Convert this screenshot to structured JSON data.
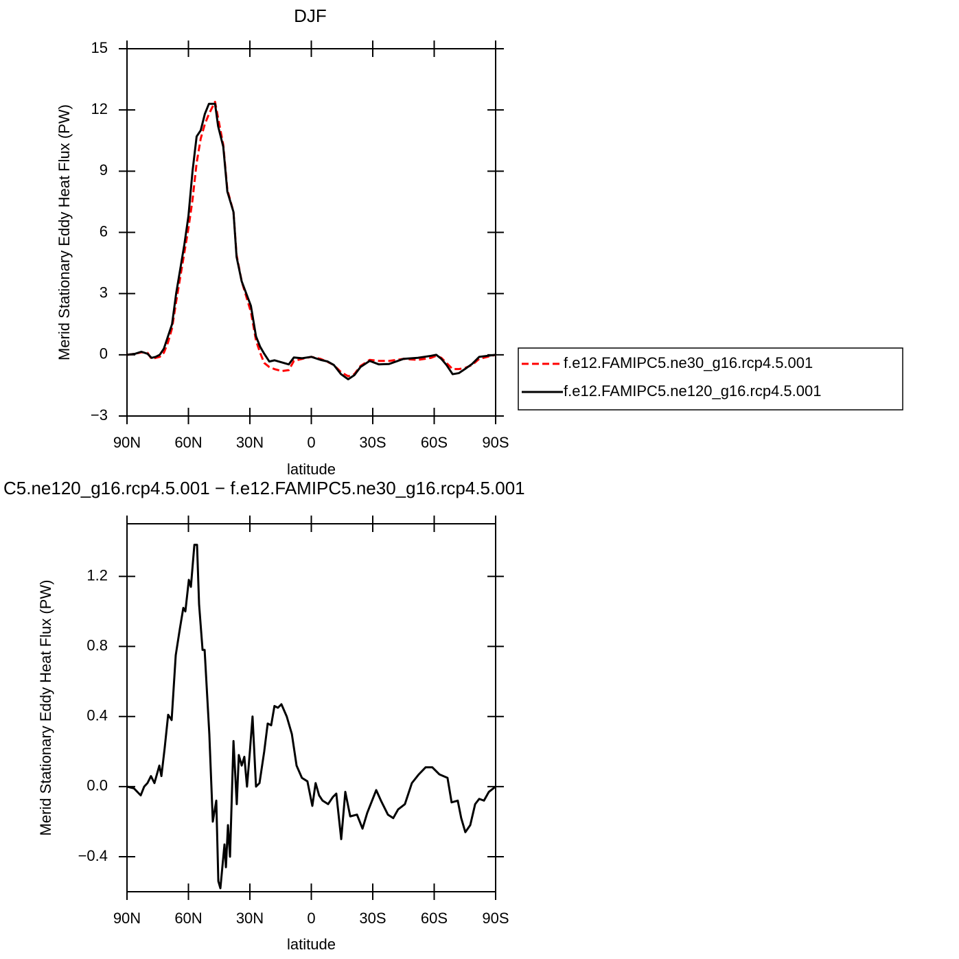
{
  "chart_data": [
    {
      "type": "line",
      "title": "DJF",
      "xlabel": "latitude",
      "ylabel": "Merid Stationary Eddy Heat Flux (PW)",
      "x": [
        90,
        86,
        83,
        80,
        78,
        76,
        74,
        72,
        70,
        68,
        66,
        64,
        62,
        60,
        58,
        56,
        54,
        52,
        50,
        48,
        47,
        45.5,
        43,
        41,
        38,
        36.5,
        34,
        31,
        29.5,
        27,
        25,
        23,
        20.5,
        18,
        14.5,
        11,
        8.5,
        4.5,
        0,
        -4.5,
        -8,
        -11,
        -14.5,
        -18,
        -21,
        -24,
        -28.5,
        -33,
        -38,
        -45,
        -52,
        -58.5,
        -61,
        -63.5,
        -66,
        -69,
        -72,
        -75,
        -78.5,
        -82,
        -90
      ],
      "series": [
        {
          "name": "f.e12.FAMIPC5.ne30_g16.rcp4.5.001",
          "color": "#ff0000",
          "linestyle": "dashed",
          "values": [
            0,
            0.05,
            0.12,
            0.1,
            -0.2,
            -0.15,
            -0.1,
            0.1,
            0.6,
            1.3,
            2.6,
            3.8,
            5.0,
            6.2,
            7.6,
            9.4,
            10.6,
            11.3,
            11.8,
            12.2,
            12.4,
            11.6,
            10.3,
            8.1,
            7.0,
            4.9,
            3.6,
            2.6,
            2.1,
            0.7,
            0.1,
            -0.4,
            -0.6,
            -0.7,
            -0.8,
            -0.75,
            -0.3,
            -0.2,
            -0.1,
            -0.2,
            -0.35,
            -0.5,
            -0.85,
            -1.05,
            -0.95,
            -0.55,
            -0.25,
            -0.3,
            -0.3,
            -0.2,
            -0.25,
            -0.15,
            -0.05,
            -0.15,
            -0.4,
            -0.7,
            -0.7,
            -0.65,
            -0.5,
            -0.2,
            0
          ]
        },
        {
          "name": "f.e12.FAMIPC5.ne120_g16.rcp4.5.001",
          "color": "#000000",
          "linestyle": "solid",
          "values": [
            0,
            0.05,
            0.15,
            0.05,
            -0.15,
            -0.1,
            0.0,
            0.3,
            0.9,
            1.5,
            3.0,
            4.2,
            5.4,
            6.8,
            9.0,
            10.7,
            11.0,
            11.8,
            12.3,
            12.3,
            12.3,
            11.2,
            10.2,
            8.0,
            7.0,
            4.8,
            3.6,
            2.8,
            2.4,
            0.9,
            0.4,
            0.05,
            -0.33,
            -0.27,
            -0.37,
            -0.47,
            -0.13,
            -0.17,
            -0.1,
            -0.25,
            -0.33,
            -0.5,
            -0.95,
            -1.2,
            -1.0,
            -0.6,
            -0.3,
            -0.47,
            -0.45,
            -0.2,
            -0.15,
            -0.05,
            0,
            -0.2,
            -0.5,
            -0.95,
            -0.9,
            -0.7,
            -0.45,
            -0.1,
            0
          ]
        }
      ],
      "xlim": [
        90,
        -90
      ],
      "xticks": [
        {
          "value": 90,
          "label": "90N"
        },
        {
          "value": 60,
          "label": "60N"
        },
        {
          "value": 30,
          "label": "30N"
        },
        0,
        {
          "value": -30,
          "label": "30S"
        },
        {
          "value": -60,
          "label": "60S"
        },
        {
          "value": -90,
          "label": "90S"
        }
      ],
      "ylim": [
        -3,
        15
      ],
      "yticks": [
        {
          "value": -3,
          "label": "−3"
        },
        0,
        3,
        6,
        9,
        12,
        15
      ],
      "legend": "right"
    },
    {
      "type": "line",
      "title": "C5.ne120_g16.rcp4.5.001 − f.e12.FAMIPC5.ne30_g16.rcp4.5.001",
      "xlabel": "latitude",
      "ylabel": "Merid Stationary Eddy Heat Flux (PW)",
      "x": [
        90,
        86.6,
        83.3,
        81.6,
        80,
        78.3,
        76.6,
        74.2,
        73.2,
        71.6,
        69.9,
        68.2,
        66.2,
        64.2,
        62.5,
        61.5,
        59.8,
        58.8,
        57.1,
        55.8,
        54.8,
        53.1,
        52.1,
        49.8,
        48.1,
        46.4,
        45.4,
        44.4,
        42.4,
        41.7,
        40.7,
        39.7,
        38,
        36.4,
        35.4,
        34,
        32.7,
        31.4,
        30,
        28.7,
        27,
        25.3,
        23,
        21.3,
        19.6,
        18,
        16.3,
        14.6,
        12,
        9.5,
        7.2,
        4.6,
        1.9,
        -0.5,
        -2.1,
        -3.8,
        -5.5,
        -8.2,
        -10.5,
        -12.2,
        -14.6,
        -16.6,
        -19,
        -22.3,
        -25,
        -27.3,
        -31.7,
        -34,
        -37.4,
        -40,
        -42.4,
        -45.7,
        -49.1,
        -52.5,
        -55.8,
        -59.1,
        -62.5,
        -66.5,
        -68.5,
        -71.5,
        -73.2,
        -75.2,
        -77.6,
        -80,
        -82,
        -84.3,
        -86.7,
        -90
      ],
      "series": [
        {
          "color": "#000000",
          "linestyle": "solid",
          "values": [
            0,
            -0.01,
            -0.05,
            0.0,
            0.02,
            0.06,
            0.02,
            0.12,
            0.06,
            0.22,
            0.41,
            0.38,
            0.75,
            0.9,
            1.02,
            1.0,
            1.18,
            1.14,
            1.38,
            1.38,
            1.04,
            0.78,
            0.78,
            0.3,
            -0.2,
            -0.08,
            -0.54,
            -0.58,
            -0.33,
            -0.46,
            -0.22,
            -0.4,
            0.26,
            -0.1,
            0.18,
            0.12,
            0.17,
            0.0,
            0.2,
            0.4,
            0.0,
            0.02,
            0.2,
            0.36,
            0.35,
            0.46,
            0.45,
            0.47,
            0.4,
            0.3,
            0.12,
            0.05,
            0.03,
            -0.11,
            0.02,
            -0.05,
            -0.08,
            -0.1,
            -0.06,
            -0.04,
            -0.3,
            -0.03,
            -0.17,
            -0.16,
            -0.24,
            -0.15,
            -0.02,
            -0.08,
            -0.16,
            -0.18,
            -0.13,
            -0.1,
            0.02,
            0.07,
            0.11,
            0.11,
            0.07,
            0.05,
            -0.09,
            -0.08,
            -0.18,
            -0.26,
            -0.22,
            -0.1,
            -0.07,
            -0.08,
            -0.03,
            0
          ]
        }
      ],
      "xlim": [
        90,
        -90
      ],
      "xticks": [
        {
          "value": 90,
          "label": "90N"
        },
        {
          "value": 60,
          "label": "60N"
        },
        {
          "value": 30,
          "label": "30N"
        },
        0,
        {
          "value": -30,
          "label": "30S"
        },
        {
          "value": -60,
          "label": "60S"
        },
        {
          "value": -90,
          "label": "90S"
        }
      ],
      "ylim": [
        -0.6,
        1.5
      ],
      "yticks": [
        {
          "value": -0.4,
          "label": "−0.4"
        },
        {
          "value": 0,
          "label": "0.0"
        },
        0.4,
        0.8,
        1.2
      ]
    }
  ]
}
